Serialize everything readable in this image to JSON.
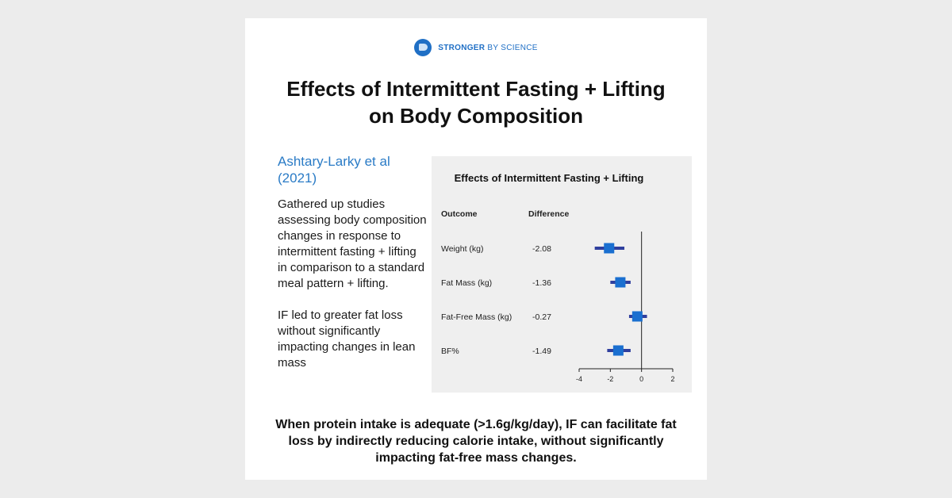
{
  "brand": {
    "name_strong": "STRONGER",
    "name_rest": "BY SCIENCE"
  },
  "title": {
    "line1": "Effects of Intermittent Fasting + Lifting",
    "line2": "on Body Composition"
  },
  "study": {
    "citation": "Ashtary-Larky et al (2021)"
  },
  "description": {
    "paragraph1": "Gathered up studies assessing body composition changes in response to intermittent fasting + lifting in comparison to a standard meal pattern + lifting.",
    "paragraph2": "IF led to greater fat loss without significantly impacting changes in lean mass"
  },
  "conclusion": "When protein intake is adequate (>1.6g/kg/day), IF can facilitate fat loss by indirectly reducing calorie intake, without significantly impacting fat-free mass changes.",
  "colors": {
    "point": "#1a6fd0",
    "ci": "#2f3f9e",
    "accent": "#2a7bc6",
    "panel": "#efefef"
  },
  "chart_data": {
    "type": "forest",
    "title": "Effects of Intermittent Fasting + Lifting",
    "columns": {
      "outcome": "Outcome",
      "difference": "Difference"
    },
    "rows": [
      {
        "outcome": "Weight (kg)",
        "difference": -2.08,
        "label": "-2.08",
        "ci": [
          -3.0,
          -1.1
        ]
      },
      {
        "outcome": "Fat Mass (kg)",
        "difference": -1.36,
        "label": "-1.36",
        "ci": [
          -2.0,
          -0.7
        ]
      },
      {
        "outcome": "Fat-Free Mass (kg)",
        "difference": -0.27,
        "label": "-0.27",
        "ci": [
          -0.8,
          0.35
        ]
      },
      {
        "outcome": "BF%",
        "difference": -1.49,
        "label": "-1.49",
        "ci": [
          -2.2,
          -0.7
        ]
      }
    ],
    "xlim": [
      -4,
      2
    ],
    "xticks": [
      -4,
      -2,
      0,
      2
    ],
    "reference_line": 0
  }
}
